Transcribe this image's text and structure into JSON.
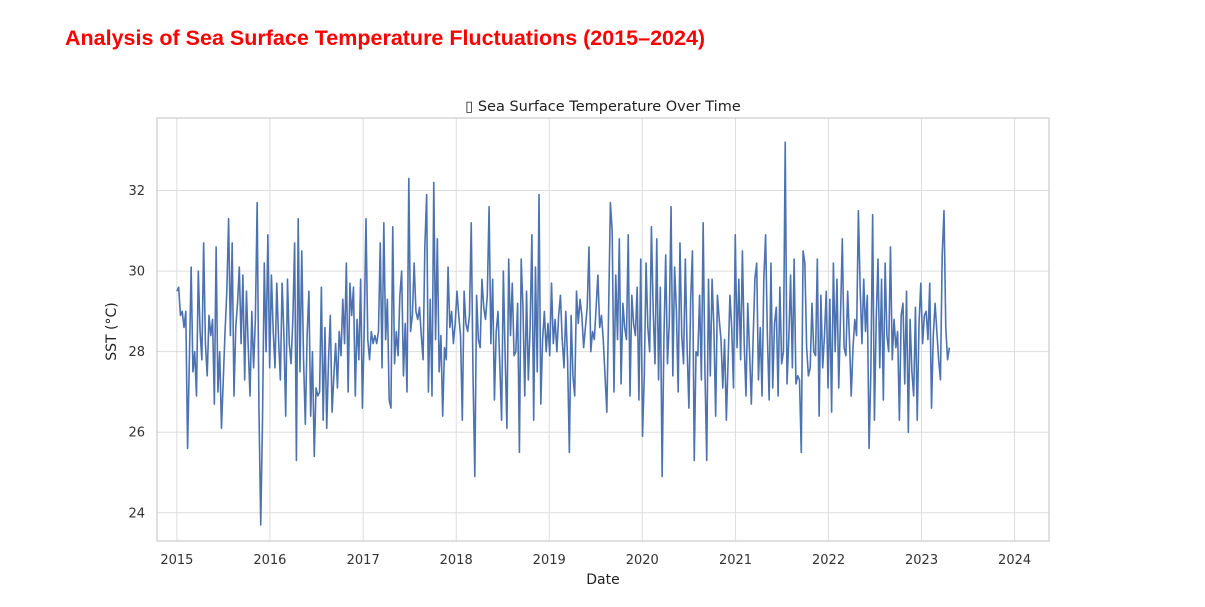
{
  "page": {
    "title": "Analysis of Sea Surface Temperature Fluctuations (2015–2024)"
  },
  "chart_data": {
    "type": "line",
    "title": "▯ Sea Surface Temperature Over Time",
    "xlabel": "Date",
    "ylabel": "SST (°C)",
    "x_ticks": [
      "2015",
      "2016",
      "2017",
      "2018",
      "2019",
      "2020",
      "2021",
      "2022",
      "2023",
      "2024"
    ],
    "y_ticks": [
      24,
      26,
      28,
      30,
      32
    ],
    "ylim": [
      23.3,
      33.8
    ],
    "xlim": [
      "2014-10-15",
      "2024-05-15"
    ],
    "grid": true,
    "line_color": "#4c72b0",
    "x_start": "2015-01-01",
    "x_step_days": 7,
    "series": [
      {
        "name": "",
        "values": [
          29.5,
          29.6,
          28.9,
          29.0,
          28.6,
          29.0,
          25.6,
          27.8,
          30.1,
          27.5,
          28.0,
          26.9,
          30.0,
          28.5,
          27.8,
          30.7,
          28.2,
          27.4,
          28.9,
          28.4,
          28.8,
          26.7,
          30.6,
          27.0,
          28.0,
          26.1,
          27.3,
          28.5,
          29.5,
          31.3,
          28.4,
          30.7,
          26.9,
          28.6,
          29.2,
          30.1,
          28.2,
          29.9,
          27.3,
          29.5,
          28.1,
          26.9,
          29.0,
          27.6,
          28.8,
          31.7,
          26.6,
          23.7,
          26.3,
          30.2,
          28.0,
          30.9,
          27.6,
          29.9,
          28.5,
          27.6,
          29.7,
          28.3,
          27.3,
          29.7,
          28.4,
          26.4,
          29.8,
          28.2,
          27.7,
          28.8,
          30.7,
          25.3,
          31.3,
          27.5,
          30.5,
          27.8,
          26.2,
          28.4,
          29.5,
          26.4,
          28.0,
          25.4,
          27.1,
          26.9,
          27.0,
          29.6,
          26.3,
          28.6,
          26.1,
          27.8,
          28.9,
          26.5,
          27.4,
          28.2,
          27.1,
          28.5,
          27.9,
          29.3,
          28.2,
          30.2,
          27.0,
          29.7,
          28.9,
          29.6,
          26.9,
          28.8,
          27.8,
          29.8,
          26.6,
          28.5,
          31.3,
          28.3,
          27.8,
          28.5,
          28.2,
          28.4,
          28.2,
          28.5,
          30.7,
          27.6,
          31.2,
          28.3,
          29.3,
          26.8,
          26.6,
          31.1,
          27.7,
          28.5,
          27.9,
          29.4,
          30.0,
          27.4,
          28.7,
          27.0,
          32.3,
          28.5,
          28.9,
          30.2,
          29.0,
          28.8,
          29.1,
          28.4,
          27.8,
          30.6,
          31.9,
          27.0,
          29.3,
          26.9,
          32.2,
          28.3,
          30.8,
          27.5,
          28.4,
          26.4,
          28.1,
          27.8,
          30.1,
          28.6,
          29.0,
          28.2,
          28.7,
          29.5,
          28.9,
          28.4,
          26.3,
          29.5,
          28.7,
          28.5,
          28.9,
          31.2,
          27.4,
          24.9,
          29.4,
          28.3,
          28.1,
          29.8,
          29.1,
          28.8,
          29.4,
          31.6,
          28.2,
          29.8,
          26.8,
          28.5,
          29.0,
          27.7,
          26.3,
          30.0,
          27.9,
          26.1,
          30.3,
          28.4,
          29.7,
          27.9,
          28.0,
          29.2,
          25.5,
          30.3,
          29.1,
          26.9,
          29.5,
          27.3,
          28.6,
          30.9,
          26.3,
          30.1,
          27.5,
          31.9,
          26.7,
          28.3,
          29.0,
          28.0,
          28.7,
          27.9,
          29.7,
          28.2,
          28.8,
          28.0,
          28.9,
          29.4,
          28.3,
          27.6,
          29.0,
          27.8,
          25.5,
          28.9,
          27.4,
          26.9,
          29.5,
          28.7,
          29.3,
          28.9,
          28.1,
          28.6,
          29.1,
          30.6,
          28.0,
          28.5,
          28.3,
          29.1,
          29.9,
          28.6,
          28.9,
          28.3,
          27.4,
          26.5,
          29.0,
          31.7,
          31.0,
          27.0,
          29.9,
          28.3,
          30.8,
          27.2,
          29.2,
          28.6,
          28.3,
          30.9,
          26.9,
          29.4,
          28.7,
          28.4,
          29.6,
          26.8,
          30.3,
          25.9,
          27.4,
          30.2,
          28.6,
          28.0,
          31.1,
          29.0,
          27.7,
          30.8,
          27.3,
          29.6,
          24.9,
          28.3,
          30.4,
          27.7,
          28.7,
          31.6,
          27.4,
          30.1,
          29.0,
          27.0,
          30.7,
          28.4,
          27.7,
          30.3,
          28.1,
          26.6,
          29.3,
          30.5,
          25.3,
          28.0,
          27.9,
          29.4,
          27.3,
          31.2,
          27.5,
          25.3,
          29.8,
          27.4,
          29.8,
          28.6,
          26.4,
          29.4,
          28.8,
          28.3,
          27.1,
          28.3,
          26.3,
          27.8,
          29.4,
          28.6,
          27.1,
          30.9,
          28.1,
          29.8,
          27.8,
          30.5,
          28.2,
          26.9,
          29.2,
          28.0,
          26.7,
          28.3,
          29.8,
          30.2,
          27.3,
          28.6,
          26.9,
          29.8,
          30.9,
          28.4,
          26.8,
          30.2,
          27.1,
          28.7,
          29.1,
          26.9,
          29.6,
          27.7,
          28.0,
          33.2,
          27.2,
          28.3,
          29.9,
          27.6,
          30.3,
          27.2,
          27.4,
          27.3,
          25.5,
          30.5,
          30.2,
          28.1,
          27.4,
          27.6,
          29.2,
          28.0,
          27.9,
          30.3,
          26.4,
          29.4,
          27.6,
          28.4,
          29.5,
          27.1,
          29.3,
          26.5,
          30.2,
          28.0,
          29.8,
          27.1,
          28.9,
          30.8,
          28.1,
          27.9,
          29.5,
          28.3,
          26.9,
          28.1,
          28.8,
          28.4,
          31.5,
          29.6,
          28.2,
          29.8,
          28.5,
          29.4,
          25.6,
          27.5,
          31.4,
          26.3,
          28.8,
          30.3,
          27.6,
          29.8,
          26.8,
          30.2,
          28.4,
          28.0,
          30.6,
          27.8,
          28.8,
          28.1,
          28.5,
          26.3,
          28.9,
          29.2,
          27.2,
          29.5,
          26.0,
          28.8,
          27.5,
          26.9,
          29.1,
          26.3,
          28.7,
          29.7,
          28.2,
          28.9,
          29.0,
          28.3,
          29.7,
          26.6,
          28.4,
          29.2,
          28.5,
          27.8,
          27.3,
          30.4,
          31.5,
          28.6,
          27.8,
          28.1
        ]
      }
    ]
  }
}
